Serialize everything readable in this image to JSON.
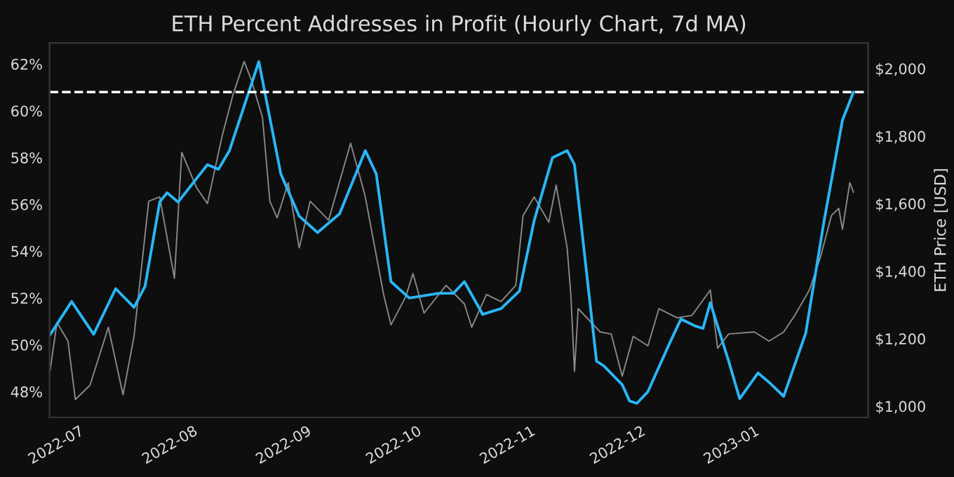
{
  "chart_data": {
    "type": "line",
    "title": "ETH Percent Addresses in Profit (Hourly Chart, 7d MA)",
    "y2label": "ETH Price [USD]",
    "xlim": [
      "2022-06-21",
      "2023-01-30"
    ],
    "xticks": [
      "2022-07",
      "2022-08",
      "2022-09",
      "2022-10",
      "2022-11",
      "2022-12",
      "2023-01"
    ],
    "ylim": [
      46.9,
      62.9
    ],
    "yticks": [
      {
        "value": 48,
        "label": "48%"
      },
      {
        "value": 50,
        "label": "50%"
      },
      {
        "value": 52,
        "label": "52%"
      },
      {
        "value": 54,
        "label": "54%"
      },
      {
        "value": 56,
        "label": "56%"
      },
      {
        "value": 58,
        "label": "58%"
      },
      {
        "value": 60,
        "label": "60%"
      },
      {
        "value": 62,
        "label": "62%"
      }
    ],
    "y2lim": [
      967,
      2076
    ],
    "y2ticks": [
      {
        "value": 1000,
        "label": "$1,000"
      },
      {
        "value": 1200,
        "label": "$1,200"
      },
      {
        "value": 1400,
        "label": "$1,400"
      },
      {
        "value": 1600,
        "label": "$1,600"
      },
      {
        "value": 1800,
        "label": "$1,800"
      },
      {
        "value": 2000,
        "label": "$2,000"
      }
    ],
    "grid": false,
    "legend": false,
    "ref_lines": [
      {
        "axis": "y",
        "value": 60.8,
        "color": "#ffffff",
        "line_style": "dashed"
      }
    ],
    "series": [
      {
        "color": "#888888",
        "axis": "y2",
        "x": [
          "2022-06-21",
          "2022-06-23",
          "2022-06-26",
          "2022-06-28",
          "2022-07-02",
          "2022-07-07",
          "2022-07-11",
          "2022-07-14",
          "2022-07-18",
          "2022-07-21",
          "2022-07-25",
          "2022-07-27",
          "2022-07-31",
          "2022-08-03",
          "2022-08-07",
          "2022-08-10",
          "2022-08-13",
          "2022-08-15",
          "2022-08-18",
          "2022-08-20",
          "2022-08-22",
          "2022-08-25",
          "2022-08-28",
          "2022-08-31",
          "2022-09-05",
          "2022-09-11",
          "2022-09-14",
          "2022-09-15",
          "2022-09-20",
          "2022-09-22",
          "2022-09-26",
          "2022-09-28",
          "2022-10-01",
          "2022-10-07",
          "2022-10-12",
          "2022-10-14",
          "2022-10-18",
          "2022-10-22",
          "2022-10-26",
          "2022-10-28",
          "2022-10-31",
          "2022-11-04",
          "2022-11-06",
          "2022-11-09",
          "2022-11-10",
          "2022-11-11",
          "2022-11-12",
          "2022-11-18",
          "2022-11-21",
          "2022-11-24",
          "2022-11-27",
          "2022-12-01",
          "2022-12-04",
          "2022-12-09",
          "2022-12-13",
          "2022-12-18",
          "2022-12-20",
          "2022-12-23",
          "2022-12-30",
          "2023-01-03",
          "2023-01-07",
          "2023-01-10",
          "2023-01-14",
          "2023-01-17",
          "2023-01-20",
          "2023-01-22",
          "2023-01-23",
          "2023-01-25",
          "2023-01-26"
        ],
        "values": [
          1096,
          1248,
          1193,
          1020,
          1062,
          1234,
          1034,
          1207,
          1607,
          1620,
          1379,
          1752,
          1648,
          1600,
          1800,
          1924,
          2021,
          1965,
          1855,
          1607,
          1558,
          1662,
          1469,
          1607,
          1551,
          1779,
          1662,
          1620,
          1331,
          1241,
          1324,
          1393,
          1276,
          1358,
          1303,
          1234,
          1331,
          1310,
          1358,
          1565,
          1620,
          1545,
          1655,
          1469,
          1331,
          1103,
          1289,
          1220,
          1214,
          1089,
          1207,
          1179,
          1289,
          1262,
          1269,
          1344,
          1172,
          1214,
          1220,
          1193,
          1220,
          1269,
          1344,
          1441,
          1565,
          1586,
          1524,
          1662,
          1634
        ]
      },
      {
        "color": "#29b6f6",
        "x": [
          "2022-06-21",
          "2022-06-27",
          "2022-07-03",
          "2022-07-09",
          "2022-07-14",
          "2022-07-17",
          "2022-07-21",
          "2022-07-23",
          "2022-07-26",
          "2022-08-03",
          "2022-08-06",
          "2022-08-09",
          "2022-08-17",
          "2022-08-23",
          "2022-08-28",
          "2022-09-02",
          "2022-09-08",
          "2022-09-15",
          "2022-09-18",
          "2022-09-22",
          "2022-09-27",
          "2022-10-05",
          "2022-10-09",
          "2022-10-12",
          "2022-10-17",
          "2022-10-22",
          "2022-10-27",
          "2022-10-31",
          "2022-11-05",
          "2022-11-09",
          "2022-11-11",
          "2022-11-17",
          "2022-11-19",
          "2022-11-24",
          "2022-11-26",
          "2022-11-28",
          "2022-12-01",
          "2022-12-07",
          "2022-12-10",
          "2022-12-14",
          "2022-12-16",
          "2022-12-18",
          "2022-12-23",
          "2022-12-26",
          "2022-12-31",
          "2023-01-03",
          "2023-01-07",
          "2023-01-13",
          "2023-01-18",
          "2023-01-23",
          "2023-01-26"
        ],
        "values": [
          50.4,
          51.85,
          50.45,
          52.4,
          51.6,
          52.5,
          56.1,
          56.5,
          56.1,
          57.7,
          57.5,
          58.3,
          62.1,
          57.3,
          55.5,
          54.8,
          55.6,
          58.3,
          57.3,
          52.7,
          52.0,
          52.2,
          52.2,
          52.7,
          51.3,
          51.55,
          52.3,
          55.3,
          58.0,
          58.3,
          57.7,
          49.3,
          49.1,
          48.3,
          47.6,
          47.5,
          48.0,
          50.1,
          51.1,
          50.8,
          50.7,
          51.8,
          49.3,
          47.7,
          48.8,
          48.4,
          47.8,
          50.5,
          55.3,
          59.6,
          60.8
        ]
      }
    ]
  }
}
